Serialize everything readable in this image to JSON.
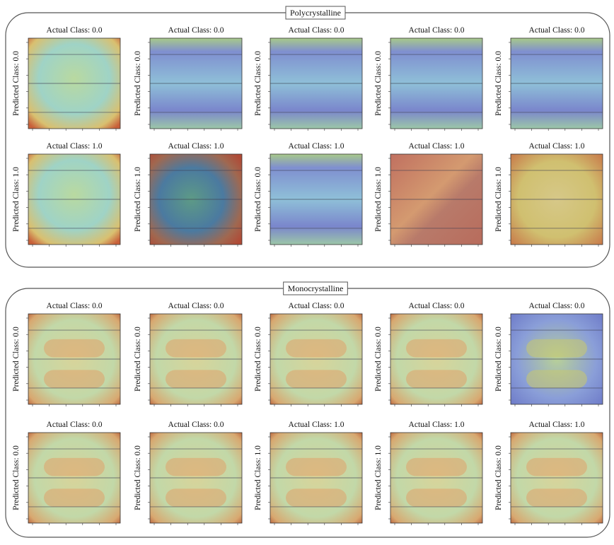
{
  "groups": [
    {
      "title": "Polycrystalline",
      "panels": [
        {
          "actual": "Actual Class: 0.0",
          "predicted": "Predicted Class: 0.0"
        },
        {
          "actual": "Actual Class: 0.0",
          "predicted": "Predicted Class: 0.0"
        },
        {
          "actual": "Actual Class: 0.0",
          "predicted": "Predicted Class: 0.0"
        },
        {
          "actual": "Actual Class: 0.0",
          "predicted": "Predicted Class: 0.0"
        },
        {
          "actual": "Actual Class: 0.0",
          "predicted": "Predicted Class: 0.0"
        },
        {
          "actual": "Actual Class: 1.0",
          "predicted": "Predicted Class: 1.0"
        },
        {
          "actual": "Actual Class: 1.0",
          "predicted": "Predicted Class: 1.0"
        },
        {
          "actual": "Actual Class: 1.0",
          "predicted": "Predicted Class: 0.0"
        },
        {
          "actual": "Actual Class: 1.0",
          "predicted": "Predicted Class: 1.0"
        },
        {
          "actual": "Actual Class: 1.0",
          "predicted": "Predicted Class: 1.0"
        }
      ]
    },
    {
      "title": "Monocrystalline",
      "panels": [
        {
          "actual": "Actual Class: 0.0",
          "predicted": "Predicted Class: 0.0"
        },
        {
          "actual": "Actual Class: 0.0",
          "predicted": "Predicted Class: 0.0"
        },
        {
          "actual": "Actual Class: 0.0",
          "predicted": "Predicted Class: 0.0"
        },
        {
          "actual": "Actual Class: 0.0",
          "predicted": "Predicted Class: 0.0"
        },
        {
          "actual": "Actual Class: 0.0",
          "predicted": "Predicted Class: 0.0"
        },
        {
          "actual": "Actual Class: 0.0",
          "predicted": "Predicted Class: 0.0"
        },
        {
          "actual": "Actual Class: 0.0",
          "predicted": "Predicted Class: 0.0"
        },
        {
          "actual": "Actual Class: 1.0",
          "predicted": "Predicted Class: 1.0"
        },
        {
          "actual": "Actual Class: 1.0",
          "predicted": "Predicted Class: 1.0"
        },
        {
          "actual": "Actual Class: 1.0",
          "predicted": "Predicted Class: 0.0"
        }
      ]
    }
  ]
}
